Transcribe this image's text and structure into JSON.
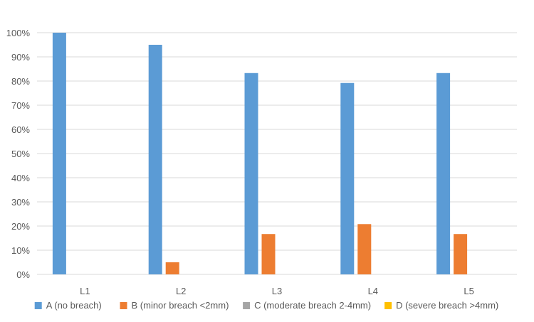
{
  "chart_data": {
    "type": "bar",
    "categories": [
      "L1",
      "L2",
      "L3",
      "L4",
      "L5"
    ],
    "series": [
      {
        "name": "A (no breach)",
        "color": "#5B9BD5",
        "values": [
          100,
          95,
          83.3,
          79.2,
          83.3
        ]
      },
      {
        "name": "B (minor breach <2mm)",
        "color": "#ED7D31",
        "values": [
          0,
          5,
          16.7,
          20.8,
          16.7
        ]
      },
      {
        "name": "C (moderate breach 2-4mm)",
        "color": "#A5A5A5",
        "values": [
          0,
          0,
          0,
          0,
          0
        ]
      },
      {
        "name": "D (severe breach >4mm)",
        "color": "#FFC000",
        "values": [
          0,
          0,
          0,
          0,
          0
        ]
      }
    ],
    "yticks": [
      "0%",
      "10%",
      "20%",
      "30%",
      "40%",
      "50%",
      "60%",
      "70%",
      "80%",
      "90%",
      "100%"
    ],
    "ylim": [
      0,
      100
    ],
    "grid": true,
    "legend_position": "bottom",
    "title": "",
    "xlabel": "",
    "ylabel": ""
  }
}
